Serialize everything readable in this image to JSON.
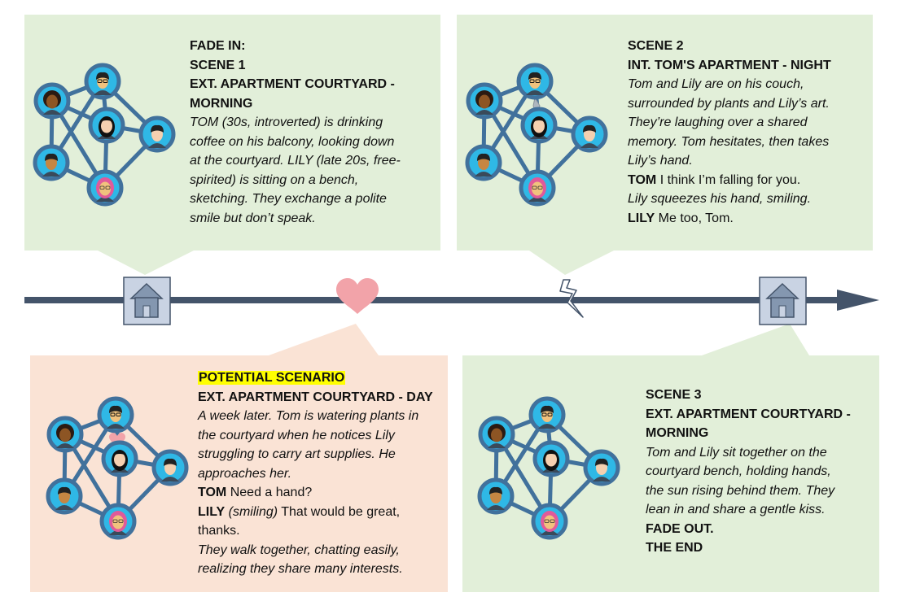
{
  "colors": {
    "green_box": "#e2efd9",
    "peach_box": "#fae3d5",
    "timeline": "#44546a",
    "house_tile": "#c9d3e3",
    "heart": "#f2a3a9",
    "network_edge": "#41719c",
    "node_fill": "#2fb8e6",
    "highlight": "#ffff00"
  },
  "scene1": {
    "fade_in": "FADE IN:",
    "title": "SCENE 1",
    "location_line1": "EXT. APARTMENT COURTYARD -",
    "location_line2": "MORNING",
    "action": [
      "TOM (30s, introverted) is drinking",
      "coffee on his balcony, looking down",
      "at the courtyard. LILY (late 20s, free-",
      "spirited) is sitting on a bench,",
      "sketching. They exchange a polite",
      "smile but don’t speak."
    ]
  },
  "scene2": {
    "title": "SCENE 2",
    "location": "INT. TOM'S APARTMENT - NIGHT",
    "action": [
      "Tom and Lily are on his couch,",
      "surrounded by plants and Lily’s art.",
      "They’re laughing over a shared",
      "memory. Tom hesitates, then takes",
      "Lily’s hand."
    ],
    "dialogue1_speaker": "TOM",
    "dialogue1_text": " I think I’m falling for you.",
    "action2": "Lily squeezes his hand, smiling.",
    "dialogue2_speaker": "LILY",
    "dialogue2_text": " Me too, Tom."
  },
  "potential": {
    "label": "POTENTIAL SCENARIO",
    "location": "EXT. APARTMENT COURTYARD - DAY",
    "action": [
      "A week later. Tom is watering plants in",
      "the courtyard when he notices Lily",
      "struggling to carry art supplies. He",
      "approaches her."
    ],
    "dialogue1_speaker": "TOM",
    "dialogue1_text": " Need a hand?",
    "dialogue2_speaker": "LILY",
    "dialogue2_paren": " (smiling)",
    "dialogue2_text": " That would be great,",
    "dialogue2_cont": "thanks.",
    "action2": [
      "They walk together, chatting easily,",
      "realizing they share many interests."
    ]
  },
  "scene3": {
    "title": "SCENE 3",
    "location_line1": "EXT. APARTMENT COURTYARD -",
    "location_line2": "MORNING",
    "action": [
      "Tom and Lily sit together on the",
      "courtyard bench, holding hands,",
      "the sun rising behind them. They",
      "lean in and share a gentle kiss."
    ],
    "fade_out": "FADE OUT.",
    "the_end": "THE END"
  },
  "timeline": {
    "markers": [
      {
        "name": "house-icon",
        "scene": "Scene 1"
      },
      {
        "name": "heart-icon",
        "scene": "Potential scenario"
      },
      {
        "name": "lightning-icon",
        "scene": "Scene 2"
      },
      {
        "name": "house-icon",
        "scene": "Scene 3"
      }
    ]
  }
}
